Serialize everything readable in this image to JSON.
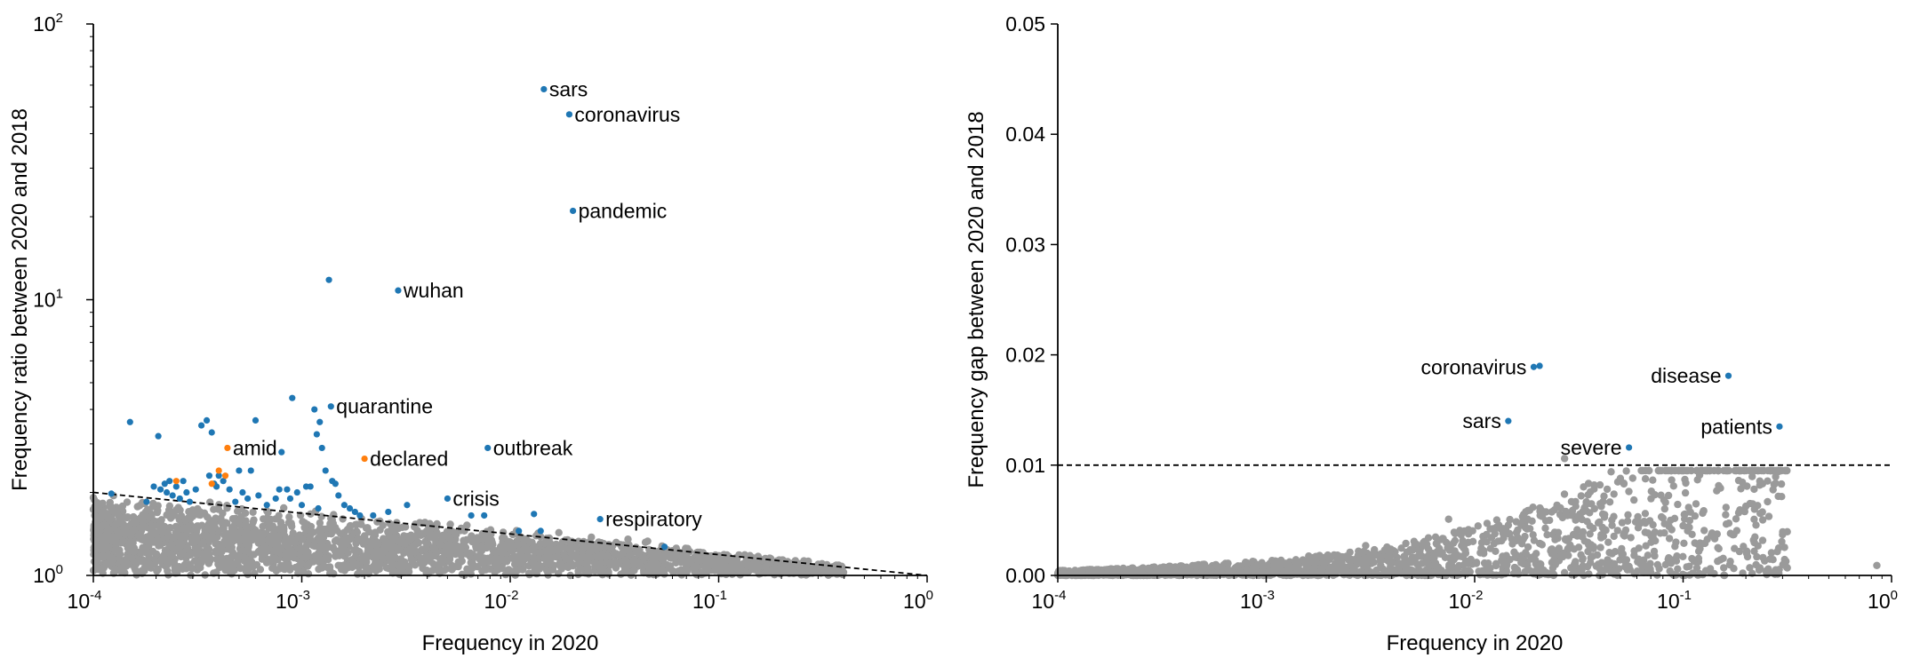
{
  "colors": {
    "background": "#9a9a9a",
    "highlight_blue": "#1f77b4",
    "highlight_orange": "#ff7f0e",
    "threshold": "#000000"
  },
  "chart_data": [
    {
      "type": "scatter",
      "xlabel": "Frequency in 2020",
      "ylabel": "Frequency ratio between 2020 and 2018",
      "x_scale": "log",
      "y_scale": "log",
      "xlim": [
        0.0001,
        1
      ],
      "ylim": [
        1,
        100
      ],
      "x_ticks": [
        {
          "base": "10",
          "exp": "-4"
        },
        {
          "base": "10",
          "exp": "-3"
        },
        {
          "base": "10",
          "exp": "-2"
        },
        {
          "base": "10",
          "exp": "-1"
        },
        {
          "base": "10",
          "exp": "0"
        }
      ],
      "y_ticks": [
        {
          "base": "10",
          "exp": "0"
        },
        {
          "base": "10",
          "exp": "1"
        },
        {
          "base": "10",
          "exp": "2"
        }
      ],
      "threshold_line": {
        "x": [
          0.0001,
          1
        ],
        "y": [
          2.0,
          1.0
        ],
        "style": "dashed"
      },
      "labeled_points": [
        {
          "label": "sars",
          "x": 0.0145,
          "y": 58,
          "color": "blue"
        },
        {
          "label": "coronavirus",
          "x": 0.0192,
          "y": 47,
          "color": "blue"
        },
        {
          "label": "pandemic",
          "x": 0.02,
          "y": 21,
          "color": "blue"
        },
        {
          "label": "wuhan",
          "x": 0.0029,
          "y": 10.8,
          "color": "blue"
        },
        {
          "label": "quarantine",
          "x": 0.00138,
          "y": 4.1,
          "color": "blue"
        },
        {
          "label": "amid",
          "x": 0.00044,
          "y": 2.9,
          "color": "orange"
        },
        {
          "label": "declared",
          "x": 0.002,
          "y": 2.65,
          "color": "orange"
        },
        {
          "label": "outbreak",
          "x": 0.0078,
          "y": 2.9,
          "color": "blue"
        },
        {
          "label": "crisis",
          "x": 0.005,
          "y": 1.9,
          "color": "blue"
        },
        {
          "label": "respiratory",
          "x": 0.027,
          "y": 1.6,
          "color": "blue"
        }
      ],
      "blue_points": [
        [
          0.000122,
          1.98
        ],
        [
          0.00015,
          3.6
        ],
        [
          0.00018,
          1.85
        ],
        [
          0.000195,
          2.1
        ],
        [
          0.000205,
          3.2
        ],
        [
          0.00021,
          2.05
        ],
        [
          0.00022,
          2.15
        ],
        [
          0.000225,
          2.0
        ],
        [
          0.000232,
          2.2
        ],
        [
          0.00024,
          1.95
        ],
        [
          0.00025,
          2.1
        ],
        [
          0.00026,
          1.9
        ],
        [
          0.00027,
          2.2
        ],
        [
          0.00028,
          2.0
        ],
        [
          0.00029,
          1.85
        ],
        [
          0.00031,
          2.05
        ],
        [
          0.00033,
          3.5
        ],
        [
          0.00035,
          3.65
        ],
        [
          0.00036,
          2.3
        ],
        [
          0.00037,
          3.3
        ],
        [
          0.00038,
          2.15
        ],
        [
          0.00039,
          2.1
        ],
        [
          0.0004,
          2.3
        ],
        [
          0.00042,
          2.2
        ],
        [
          0.00045,
          2.05
        ],
        [
          0.00048,
          1.85
        ],
        [
          0.0005,
          2.4
        ],
        [
          0.00052,
          2.0
        ],
        [
          0.00055,
          1.9
        ],
        [
          0.00057,
          2.4
        ],
        [
          0.0006,
          3.65
        ],
        [
          0.00062,
          1.95
        ],
        [
          0.00068,
          1.8
        ],
        [
          0.00075,
          1.9
        ],
        [
          0.00078,
          2.05
        ],
        [
          0.0008,
          2.8
        ],
        [
          0.00085,
          2.05
        ],
        [
          0.00088,
          1.9
        ],
        [
          0.0009,
          4.4
        ],
        [
          0.00095,
          2.0
        ],
        [
          0.001,
          1.8
        ],
        [
          0.00105,
          2.1
        ],
        [
          0.0011,
          2.1
        ],
        [
          0.00115,
          4.0
        ],
        [
          0.00118,
          3.25
        ],
        [
          0.0012,
          1.75
        ],
        [
          0.00122,
          3.6
        ],
        [
          0.00125,
          2.9
        ],
        [
          0.0013,
          2.4
        ],
        [
          0.00135,
          11.8
        ],
        [
          0.0014,
          2.2
        ],
        [
          0.00145,
          2.15
        ],
        [
          0.0015,
          1.95
        ],
        [
          0.0016,
          1.8
        ],
        [
          0.0017,
          1.75
        ],
        [
          0.0018,
          1.7
        ],
        [
          0.0019,
          1.65
        ],
        [
          0.0022,
          1.65
        ],
        [
          0.0026,
          1.7
        ],
        [
          0.0032,
          1.8
        ],
        [
          0.0065,
          1.65
        ],
        [
          0.0075,
          1.65
        ],
        [
          0.011,
          1.45
        ],
        [
          0.013,
          1.67
        ],
        [
          0.014,
          1.45
        ],
        [
          0.055,
          1.27
        ]
      ],
      "orange_points": [
        [
          0.00025,
          2.2
        ],
        [
          0.00037,
          2.15
        ],
        [
          0.0004,
          2.4
        ],
        [
          0.00043,
          2.3
        ]
      ]
    },
    {
      "type": "scatter",
      "xlabel": "Frequency in 2020",
      "ylabel": "Frequency gap between 2020 and 2018",
      "x_scale": "log",
      "y_scale": "linear",
      "xlim": [
        0.0001,
        1
      ],
      "ylim": [
        0,
        0.05
      ],
      "x_ticks": [
        {
          "base": "10",
          "exp": "-4"
        },
        {
          "base": "10",
          "exp": "-3"
        },
        {
          "base": "10",
          "exp": "-2"
        },
        {
          "base": "10",
          "exp": "-1"
        },
        {
          "base": "10",
          "exp": "0"
        }
      ],
      "y_ticks": [
        "0.00",
        "0.01",
        "0.02",
        "0.03",
        "0.04",
        "0.05"
      ],
      "y_tick_values": [
        0,
        0.01,
        0.02,
        0.03,
        0.04,
        0.05
      ],
      "threshold_line": {
        "y": 0.01,
        "style": "dashed"
      },
      "labeled_points": [
        {
          "label": "coronavirus",
          "x": 0.0192,
          "y": 0.0189,
          "color": "blue",
          "side": "left"
        },
        {
          "label": "disease",
          "x": 0.165,
          "y": 0.0181,
          "color": "blue",
          "side": "left"
        },
        {
          "label": "sars",
          "x": 0.0145,
          "y": 0.014,
          "color": "blue",
          "side": "left"
        },
        {
          "label": "patients",
          "x": 0.29,
          "y": 0.0135,
          "color": "blue",
          "side": "left"
        },
        {
          "label": "severe",
          "x": 0.055,
          "y": 0.0116,
          "color": "blue",
          "side": "left"
        }
      ],
      "blue_points": [
        [
          0.0205,
          0.019
        ]
      ],
      "gray_outliers": [
        [
          0.027,
          0.0106
        ],
        [
          0.05,
          0.0088
        ],
        [
          0.052,
          0.0083
        ],
        [
          0.12,
          0.0091
        ],
        [
          0.19,
          0.0095
        ],
        [
          0.3,
          0.0037
        ],
        [
          0.85,
          0.0009
        ],
        [
          0.22,
          0.006
        ],
        [
          0.16,
          0.0055
        ],
        [
          0.08,
          0.0052
        ],
        [
          0.04,
          0.0065
        ],
        [
          0.035,
          0.0073
        ],
        [
          0.0075,
          0.0051
        ],
        [
          0.003,
          0.0027
        ],
        [
          0.1,
          0.0045
        ],
        [
          0.065,
          0.0049
        ]
      ]
    }
  ]
}
